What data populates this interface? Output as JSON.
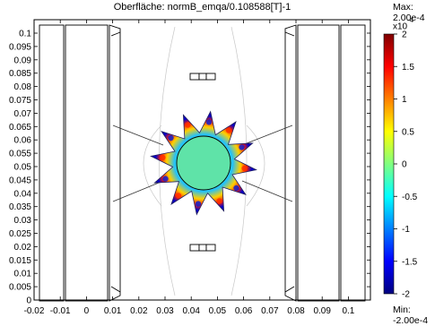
{
  "plot": {
    "title": "Oberfläche: normB_emqa/0.108588[T]-1",
    "x_ticks": [
      "-0.02",
      "-0.01",
      "0",
      "0.01",
      "0.02",
      "0.03",
      "0.04",
      "0.05",
      "0.06",
      "0.07",
      "0.08",
      "0.09",
      "0.1"
    ],
    "y_ticks": [
      "0",
      "0.005",
      "0.01",
      "0.015",
      "0.02",
      "0.025",
      "0.03",
      "0.035",
      "0.04",
      "0.045",
      "0.05",
      "0.055",
      "0.06",
      "0.065",
      "0.07",
      "0.075",
      "0.08",
      "0.085",
      "0.09",
      "0.095",
      "0.1"
    ]
  },
  "colorbar": {
    "max_label": "Max: 2.00e-4",
    "min_label": "Min: -2.00e-4",
    "exponent_base": "x10",
    "exponent_power": "-4",
    "ticks": [
      "2",
      "1.5",
      "1",
      "0.5",
      "0",
      "-0.5",
      "-1",
      "-1.5",
      "-2"
    ],
    "colors": [
      "#7f0000",
      "#ff0000",
      "#ff8000",
      "#ffff00",
      "#80ff80",
      "#00ffff",
      "#0080ff",
      "#0000ff",
      "#00007f"
    ]
  }
}
